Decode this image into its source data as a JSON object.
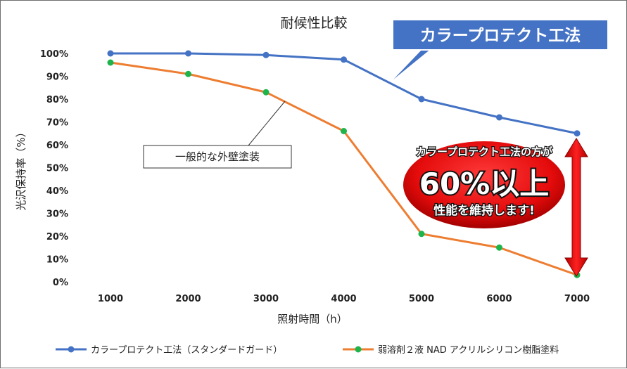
{
  "chart_data": {
    "type": "line",
    "title": "耐候性比較",
    "xlabel": "照射時間（h）",
    "ylabel": "光沢保持率（%）",
    "x": [
      1000,
      2000,
      3000,
      4000,
      5000,
      6000,
      7000
    ],
    "x_tick_labels": [
      "1000",
      "2000",
      "3000",
      "4000",
      "5000",
      "6000",
      "7000"
    ],
    "ylim": [
      0,
      100
    ],
    "y_tick_labels": [
      "0%",
      "10%",
      "20%",
      "30%",
      "40%",
      "50%",
      "60%",
      "70%",
      "80%",
      "90%",
      "100%"
    ],
    "grid": false,
    "legend_position": "bottom",
    "series": [
      {
        "name": "カラープロテクト工法（スタンダードガード）",
        "color": "#4472C4",
        "marker_color": "#4472C4",
        "values": [
          100,
          100,
          99.3,
          97.3,
          80,
          72,
          65
        ]
      },
      {
        "name": "弱溶剤２液 NAD アクリルシリコン樹脂塗料",
        "color": "#ED7D31",
        "marker_color": "#1DB44B",
        "values": [
          96,
          91,
          83,
          66,
          21,
          15,
          3
        ]
      }
    ],
    "annotations": {
      "blue_callout": "カラープロテクト工法",
      "orange_callout": "一般的な外壁塗装",
      "badge_line1": "カラープロテクト工法の方が",
      "badge_line2": "60%以上",
      "badge_line3": "性能を維持します!"
    }
  }
}
